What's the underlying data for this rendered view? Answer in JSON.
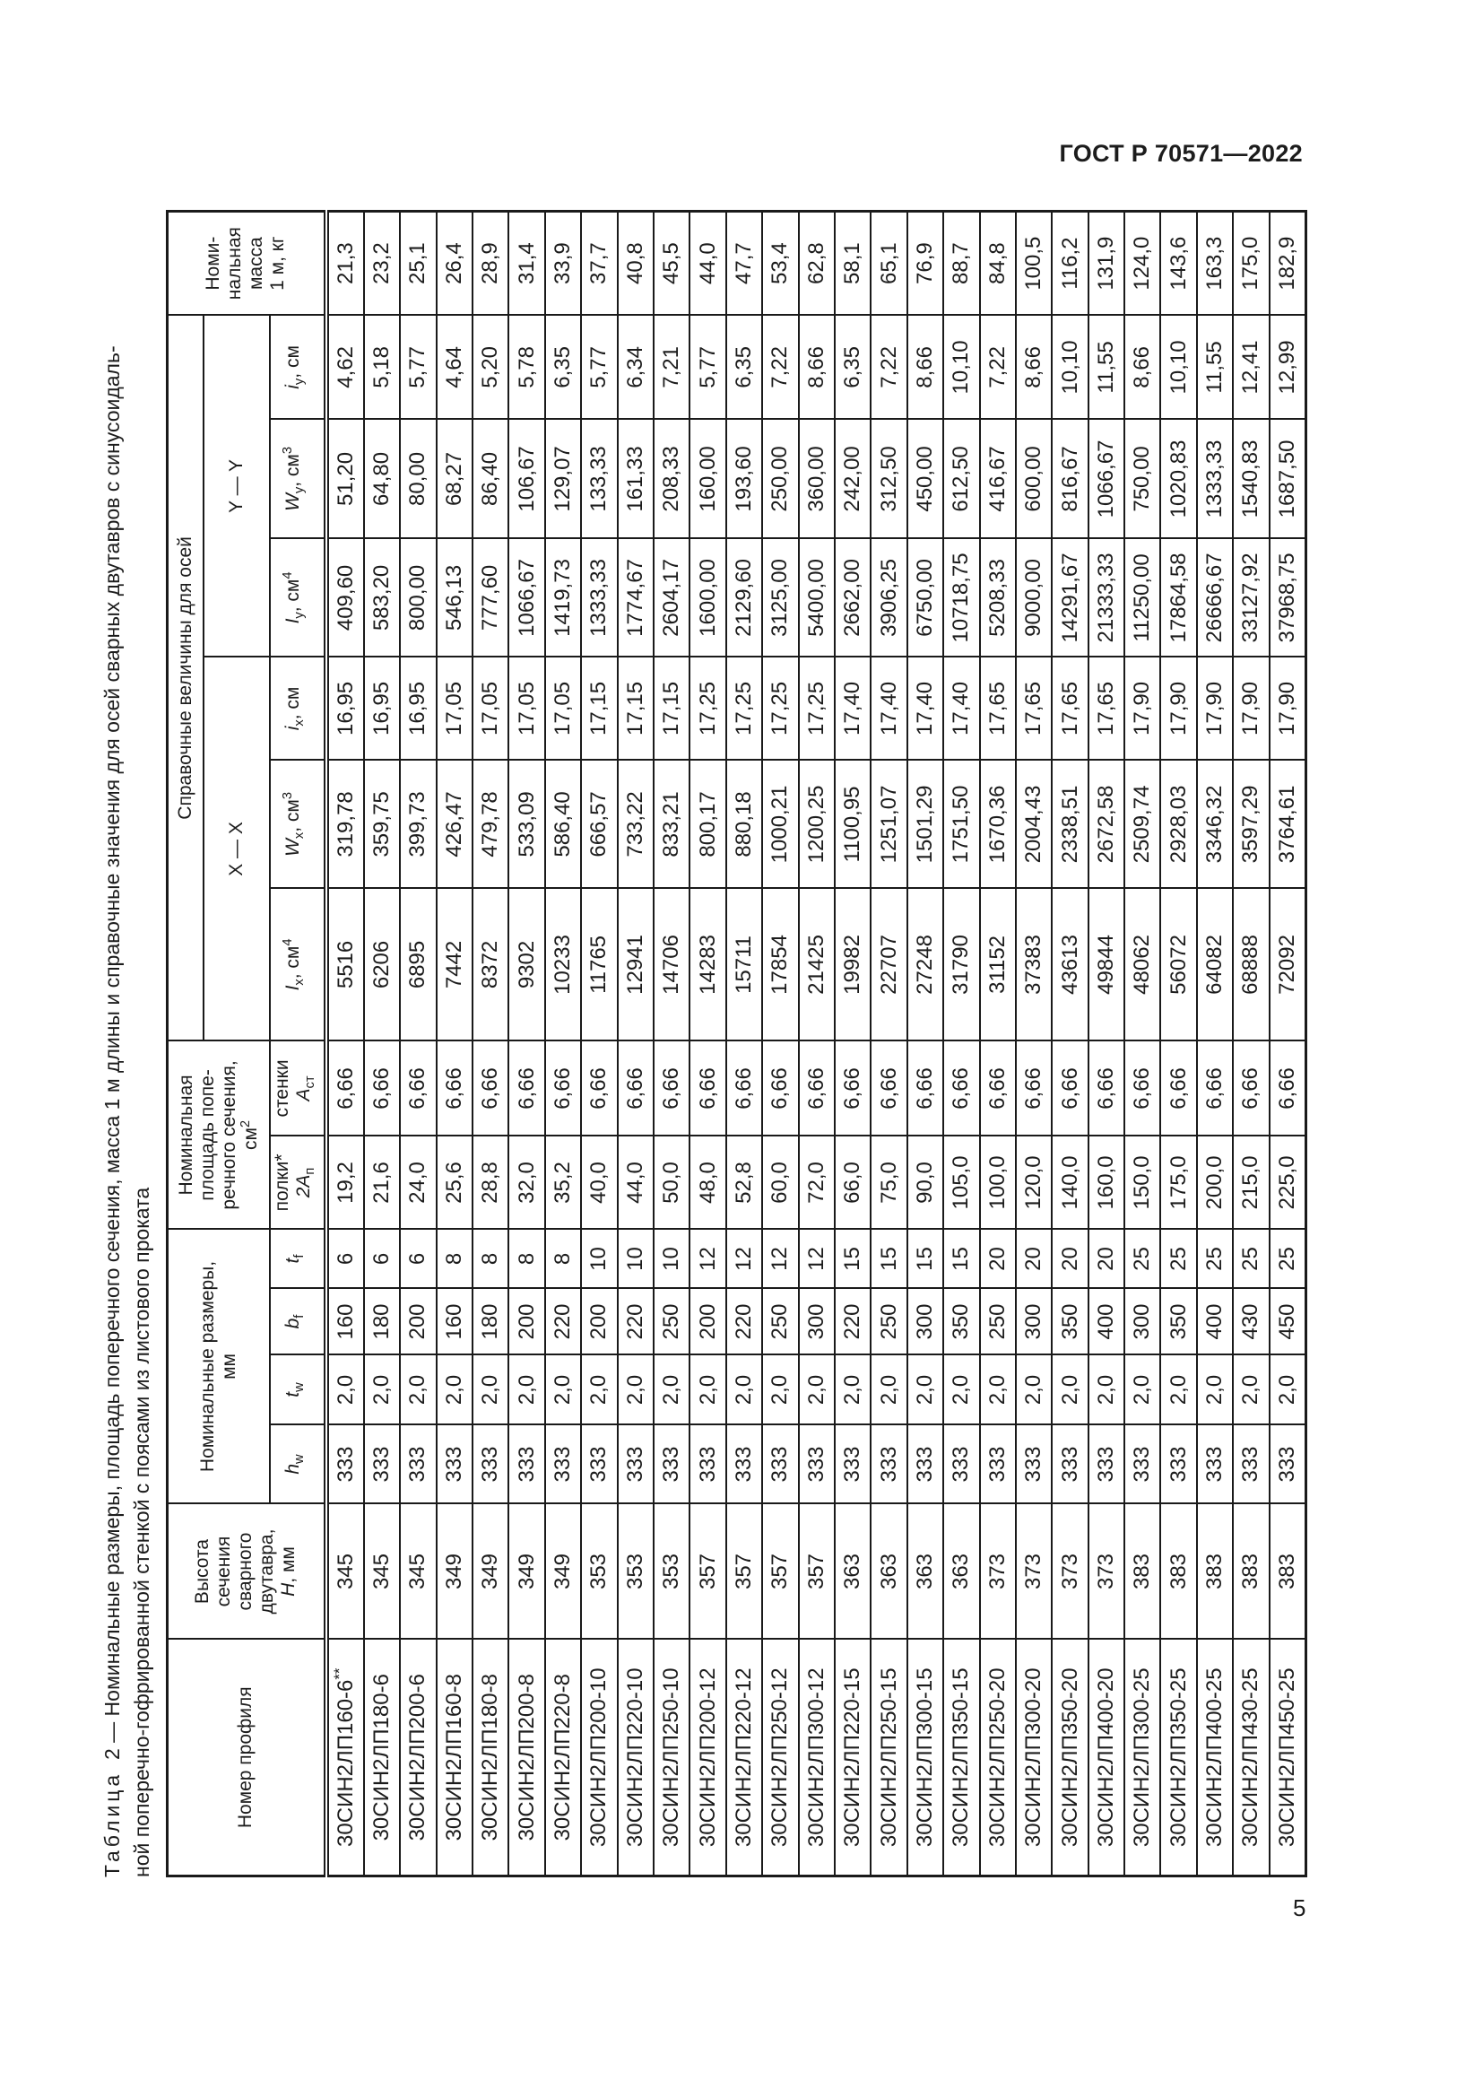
{
  "doc_header": "ГОСТ Р 70571—2022",
  "page_number": "5",
  "caption": {
    "label": "Таблица",
    "number": "2",
    "line1": "— Номинальные размеры, площадь поперечного сечения, масса 1 м длины и справочные значения для осей сварных двутавров с синусоидаль-",
    "line2": "ной поперечно-гофрированной стенкой с поясами из листового проката"
  },
  "table": {
    "headers": {
      "profile": "Номер профиля",
      "height": {
        "text": "Высота\nсечения\nсварного\nдвутавра,",
        "sym": "H",
        "unit": ", мм"
      },
      "dims": "Номинальные размеры,\nмм",
      "area": {
        "text": "Номинальная\nплощадь попе-\nречного сечения,",
        "unit": "см",
        "sup": "2"
      },
      "reference": "Справочные величины для осей",
      "axis_x": "X — X",
      "axis_y": "Y — Y",
      "mass": "Номи-\nнальная\nмасса\n1 м, кг",
      "hw": {
        "sym": "h",
        "sub": "w"
      },
      "tw": {
        "sym": "t",
        "sub": "w"
      },
      "bf": {
        "sym": "b",
        "sub": "f"
      },
      "tf": {
        "sym": "t",
        "sub": "f"
      },
      "flange": {
        "text": "полки*",
        "sym": "2A",
        "sub": "п"
      },
      "web": {
        "text": "стенки",
        "sym": "A",
        "sub": "ст"
      },
      "Ix": {
        "sym": "I",
        "sub": "x",
        "unit": ", см",
        "sup": "4"
      },
      "Wx": {
        "sym": "W",
        "sub": "x",
        "unit": ", см",
        "sup": "3"
      },
      "ix": {
        "sym": "i",
        "sub": "x",
        "unit": ", см"
      },
      "Iy": {
        "sym": "I",
        "sub": "y",
        "unit": ", см",
        "sup": "4"
      },
      "Wy": {
        "sym": "W",
        "sub": "y",
        "unit": ", см",
        "sup": "3"
      },
      "iy": {
        "sym": "i",
        "sub": "y",
        "unit": ", см"
      }
    },
    "rows": [
      {
        "profile": "30СИН2ЛП160-6",
        "note": "**",
        "values": [
          "345",
          "333",
          "2,0",
          "160",
          "6",
          "19,2",
          "6,66",
          "5516",
          "319,78",
          "16,95",
          "409,60",
          "51,20",
          "4,62",
          "21,3"
        ]
      },
      {
        "profile": "30СИН2ЛП180-6",
        "values": [
          "345",
          "333",
          "2,0",
          "180",
          "6",
          "21,6",
          "6,66",
          "6206",
          "359,75",
          "16,95",
          "583,20",
          "64,80",
          "5,18",
          "23,2"
        ]
      },
      {
        "profile": "30СИН2ЛП200-6",
        "values": [
          "345",
          "333",
          "2,0",
          "200",
          "6",
          "24,0",
          "6,66",
          "6895",
          "399,73",
          "16,95",
          "800,00",
          "80,00",
          "5,77",
          "25,1"
        ]
      },
      {
        "profile": "30СИН2ЛП160-8",
        "values": [
          "349",
          "333",
          "2,0",
          "160",
          "8",
          "25,6",
          "6,66",
          "7442",
          "426,47",
          "17,05",
          "546,13",
          "68,27",
          "4,64",
          "26,4"
        ]
      },
      {
        "profile": "30СИН2ЛП180-8",
        "values": [
          "349",
          "333",
          "2,0",
          "180",
          "8",
          "28,8",
          "6,66",
          "8372",
          "479,78",
          "17,05",
          "777,60",
          "86,40",
          "5,20",
          "28,9"
        ]
      },
      {
        "profile": "30СИН2ЛП200-8",
        "values": [
          "349",
          "333",
          "2,0",
          "200",
          "8",
          "32,0",
          "6,66",
          "9302",
          "533,09",
          "17,05",
          "1066,67",
          "106,67",
          "5,78",
          "31,4"
        ]
      },
      {
        "profile": "30СИН2ЛП220-8",
        "values": [
          "349",
          "333",
          "2,0",
          "220",
          "8",
          "35,2",
          "6,66",
          "10233",
          "586,40",
          "17,05",
          "1419,73",
          "129,07",
          "6,35",
          "33,9"
        ]
      },
      {
        "profile": "30СИН2ЛП200-10",
        "values": [
          "353",
          "333",
          "2,0",
          "200",
          "10",
          "40,0",
          "6,66",
          "11765",
          "666,57",
          "17,15",
          "1333,33",
          "133,33",
          "5,77",
          "37,7"
        ]
      },
      {
        "profile": "30СИН2ЛП220-10",
        "values": [
          "353",
          "333",
          "2,0",
          "220",
          "10",
          "44,0",
          "6,66",
          "12941",
          "733,22",
          "17,15",
          "1774,67",
          "161,33",
          "6,34",
          "40,8"
        ]
      },
      {
        "profile": "30СИН2ЛП250-10",
        "values": [
          "353",
          "333",
          "2,0",
          "250",
          "10",
          "50,0",
          "6,66",
          "14706",
          "833,21",
          "17,15",
          "2604,17",
          "208,33",
          "7,21",
          "45,5"
        ]
      },
      {
        "profile": "30СИН2ЛП200-12",
        "values": [
          "357",
          "333",
          "2,0",
          "200",
          "12",
          "48,0",
          "6,66",
          "14283",
          "800,17",
          "17,25",
          "1600,00",
          "160,00",
          "5,77",
          "44,0"
        ]
      },
      {
        "profile": "30СИН2ЛП220-12",
        "values": [
          "357",
          "333",
          "2,0",
          "220",
          "12",
          "52,8",
          "6,66",
          "15711",
          "880,18",
          "17,25",
          "2129,60",
          "193,60",
          "6,35",
          "47,7"
        ]
      },
      {
        "profile": "30СИН2ЛП250-12",
        "values": [
          "357",
          "333",
          "2,0",
          "250",
          "12",
          "60,0",
          "6,66",
          "17854",
          "1000,21",
          "17,25",
          "3125,00",
          "250,00",
          "7,22",
          "53,4"
        ]
      },
      {
        "profile": "30СИН2ЛП300-12",
        "values": [
          "357",
          "333",
          "2,0",
          "300",
          "12",
          "72,0",
          "6,66",
          "21425",
          "1200,25",
          "17,25",
          "5400,00",
          "360,00",
          "8,66",
          "62,8"
        ]
      },
      {
        "profile": "30СИН2ЛП220-15",
        "values": [
          "363",
          "333",
          "2,0",
          "220",
          "15",
          "66,0",
          "6,66",
          "19982",
          "1100,95",
          "17,40",
          "2662,00",
          "242,00",
          "6,35",
          "58,1"
        ]
      },
      {
        "profile": "30СИН2ЛП250-15",
        "values": [
          "363",
          "333",
          "2,0",
          "250",
          "15",
          "75,0",
          "6,66",
          "22707",
          "1251,07",
          "17,40",
          "3906,25",
          "312,50",
          "7,22",
          "65,1"
        ]
      },
      {
        "profile": "30СИН2ЛП300-15",
        "values": [
          "363",
          "333",
          "2,0",
          "300",
          "15",
          "90,0",
          "6,66",
          "27248",
          "1501,29",
          "17,40",
          "6750,00",
          "450,00",
          "8,66",
          "76,9"
        ]
      },
      {
        "profile": "30СИН2ЛП350-15",
        "values": [
          "363",
          "333",
          "2,0",
          "350",
          "15",
          "105,0",
          "6,66",
          "31790",
          "1751,50",
          "17,40",
          "10718,75",
          "612,50",
          "10,10",
          "88,7"
        ]
      },
      {
        "profile": "30СИН2ЛП250-20",
        "values": [
          "373",
          "333",
          "2,0",
          "250",
          "20",
          "100,0",
          "6,66",
          "31152",
          "1670,36",
          "17,65",
          "5208,33",
          "416,67",
          "7,22",
          "84,8"
        ]
      },
      {
        "profile": "30СИН2ЛП300-20",
        "values": [
          "373",
          "333",
          "2,0",
          "300",
          "20",
          "120,0",
          "6,66",
          "37383",
          "2004,43",
          "17,65",
          "9000,00",
          "600,00",
          "8,66",
          "100,5"
        ]
      },
      {
        "profile": "30СИН2ЛП350-20",
        "values": [
          "373",
          "333",
          "2,0",
          "350",
          "20",
          "140,0",
          "6,66",
          "43613",
          "2338,51",
          "17,65",
          "14291,67",
          "816,67",
          "10,10",
          "116,2"
        ]
      },
      {
        "profile": "30СИН2ЛП400-20",
        "values": [
          "373",
          "333",
          "2,0",
          "400",
          "20",
          "160,0",
          "6,66",
          "49844",
          "2672,58",
          "17,65",
          "21333,33",
          "1066,67",
          "11,55",
          "131,9"
        ]
      },
      {
        "profile": "30СИН2ЛП300-25",
        "values": [
          "383",
          "333",
          "2,0",
          "300",
          "25",
          "150,0",
          "6,66",
          "48062",
          "2509,74",
          "17,90",
          "11250,00",
          "750,00",
          "8,66",
          "124,0"
        ]
      },
      {
        "profile": "30СИН2ЛП350-25",
        "values": [
          "383",
          "333",
          "2,0",
          "350",
          "25",
          "175,0",
          "6,66",
          "56072",
          "2928,03",
          "17,90",
          "17864,58",
          "1020,83",
          "10,10",
          "143,6"
        ]
      },
      {
        "profile": "30СИН2ЛП400-25",
        "values": [
          "383",
          "333",
          "2,0",
          "400",
          "25",
          "200,0",
          "6,66",
          "64082",
          "3346,32",
          "17,90",
          "26666,67",
          "1333,33",
          "11,55",
          "163,3"
        ]
      },
      {
        "profile": "30СИН2ЛП430-25",
        "values": [
          "383",
          "333",
          "2,0",
          "430",
          "25",
          "215,0",
          "6,66",
          "68888",
          "3597,29",
          "17,90",
          "33127,92",
          "1540,83",
          "12,41",
          "175,0"
        ]
      },
      {
        "profile": "30СИН2ЛП450-25",
        "values": [
          "383",
          "333",
          "2,0",
          "450",
          "25",
          "225,0",
          "6,66",
          "72092",
          "3764,61",
          "17,90",
          "37968,75",
          "1687,50",
          "12,99",
          "182,9"
        ]
      }
    ]
  }
}
